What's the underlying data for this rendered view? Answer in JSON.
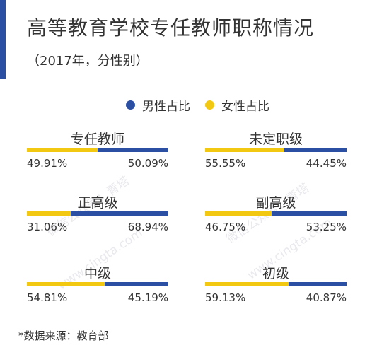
{
  "colors": {
    "male": "#2b4fa3",
    "female": "#f2c811",
    "accent": "#2b4fa3",
    "watermark": "#e9e9ee"
  },
  "title": "高等教育学校专任教师职称情况",
  "subtitle": "（2017年，分性别）",
  "legend": {
    "male_label": "男性占比",
    "female_label": "女性占比"
  },
  "watermarks": [
    "微信公众号：青塔",
    "www.cingta.com",
    "微信公众号：青塔",
    "www.cingta.com"
  ],
  "source": "*数据来源：教育部",
  "chart_data": {
    "type": "bar",
    "title": "高等教育学校专任教师职称情况",
    "subtitle": "（2017年，分性别）",
    "categories": [
      "专任教师",
      "未定职级",
      "正高级",
      "副高级",
      "中级",
      "初级"
    ],
    "unit": "%",
    "series": [
      {
        "name": "女性占比",
        "values": [
          49.91,
          55.55,
          31.06,
          46.75,
          54.81,
          59.13
        ]
      },
      {
        "name": "男性占比",
        "values": [
          50.09,
          44.45,
          68.94,
          53.25,
          45.19,
          40.87
        ]
      }
    ],
    "value_labels": [
      [
        "49.91%",
        "50.09%"
      ],
      [
        "55.55%",
        "44.45%"
      ],
      [
        "31.06%",
        "68.94%"
      ],
      [
        "46.75%",
        "53.25%"
      ],
      [
        "54.81%",
        "45.19%"
      ],
      [
        "59.13%",
        "40.87%"
      ]
    ],
    "legend_position": "top-center",
    "grid": false
  }
}
